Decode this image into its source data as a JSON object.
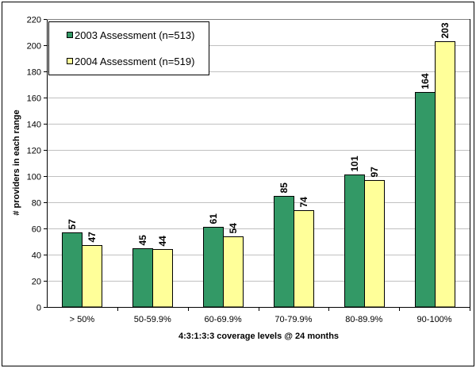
{
  "chart_data": {
    "type": "bar",
    "title": "",
    "xlabel": "4:3:1:3:3 coverage levels @ 24 months",
    "ylabel": "# providers in each range",
    "ylim": [
      0,
      220
    ],
    "yticks": [
      0,
      20,
      40,
      60,
      80,
      100,
      120,
      140,
      160,
      180,
      200,
      220
    ],
    "grid": true,
    "legend_position": "top-left",
    "categories": [
      "> 50%",
      "50-59.9%",
      "60-69.9%",
      "70-79.9%",
      "80-89.9%",
      "90-100%"
    ],
    "series": [
      {
        "name": "2003 Assessment (n=513)",
        "color": "#339966",
        "values": [
          57,
          45,
          61,
          85,
          101,
          164
        ]
      },
      {
        "name": "2004 Assessment (n=519)",
        "color": "#FFFF99",
        "values": [
          47,
          44,
          54,
          74,
          97,
          203
        ]
      }
    ]
  }
}
